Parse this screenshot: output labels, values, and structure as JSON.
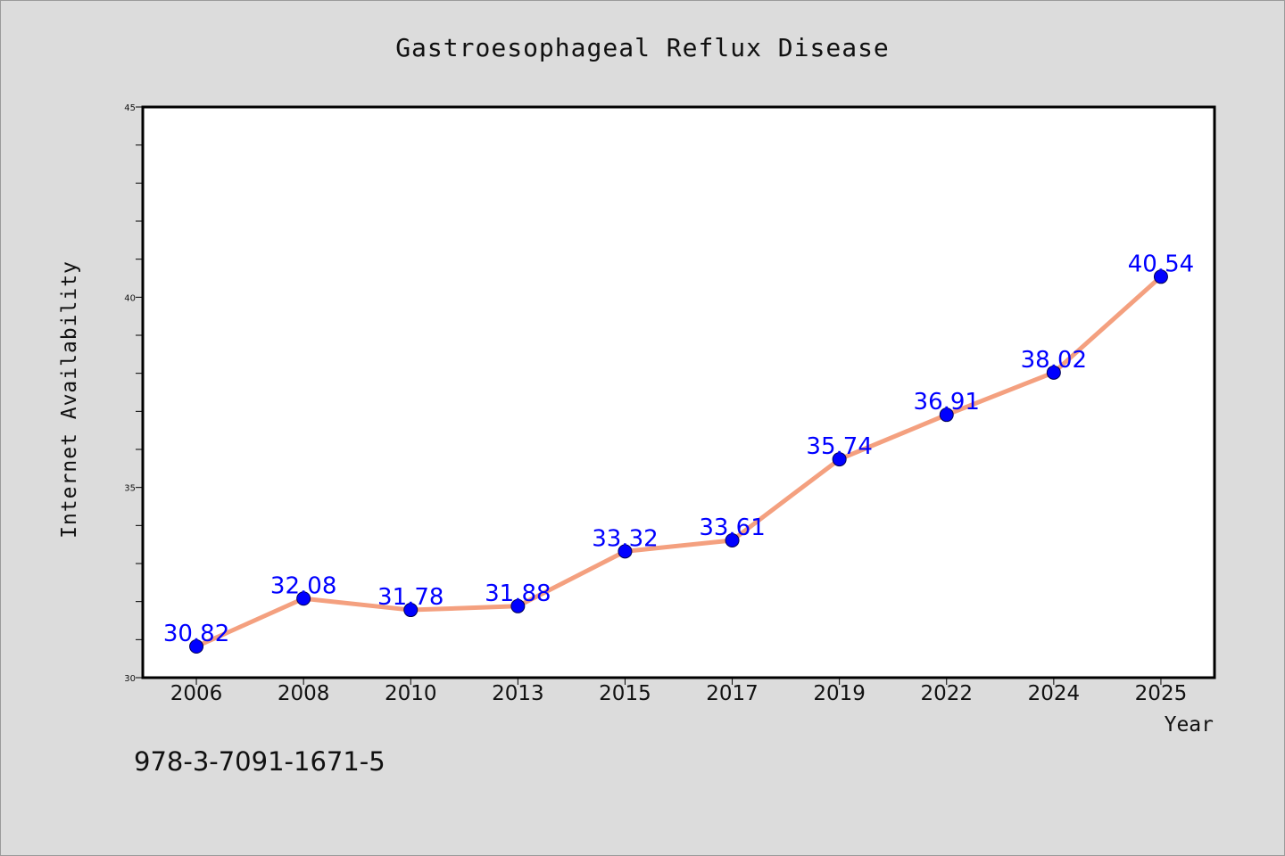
{
  "chart_data": {
    "type": "line",
    "title": "Gastroesophageal Reflux Disease",
    "xlabel": "Year",
    "ylabel": "Internet Availability",
    "categories": [
      "2006",
      "2008",
      "2010",
      "2013",
      "2015",
      "2017",
      "2019",
      "2022",
      "2024",
      "2025"
    ],
    "series": [
      {
        "values": [
          30.82,
          32.08,
          31.78,
          31.88,
          33.32,
          33.61,
          35.74,
          36.91,
          38.02,
          40.54
        ]
      }
    ],
    "data_labels": [
      "30.82",
      "32.08",
      "31.78",
      "31.88",
      "33.32",
      "33.61",
      "35.74",
      "36.91",
      "38.02",
      "40.54"
    ],
    "ylim": [
      30,
      45
    ],
    "yticks": [
      "30",
      "35",
      "40",
      "45"
    ],
    "grid": false,
    "legend": "none",
    "colors": {
      "line": "#f4a07f",
      "marker": "#0000ff",
      "label": "#0000ff",
      "background": "#dcdcdc",
      "plot_area": "#ffffff"
    }
  },
  "footer": {
    "code": "978-3-7091-1671-5"
  }
}
